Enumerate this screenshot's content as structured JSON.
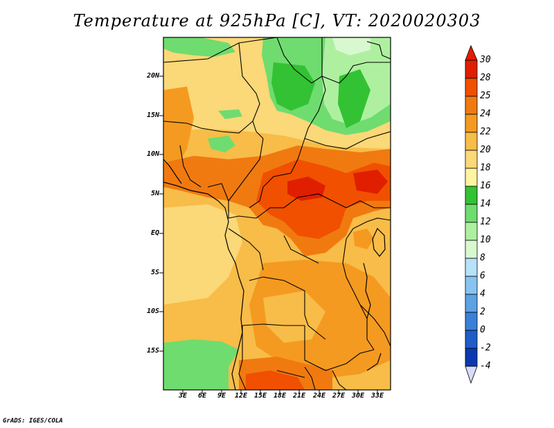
{
  "title": "Temperature at 925hPa [C], VT: 2020020303",
  "credit": "GrADS: IGES/COLA",
  "map": {
    "lat_labels": [
      "20N",
      "15N",
      "10N",
      "5N",
      "EQ",
      "5S",
      "10S",
      "15S"
    ],
    "lon_labels": [
      "3E",
      "6E",
      "9E",
      "12E",
      "15E",
      "18E",
      "21E",
      "24E",
      "27E",
      "30E",
      "33E"
    ]
  },
  "colorbar": {
    "levels": [
      "30",
      "28",
      "25",
      "24",
      "22",
      "20",
      "18",
      "16",
      "14",
      "12",
      "10",
      "8",
      "6",
      "4",
      "2",
      "0",
      "-2",
      "-4"
    ],
    "colors": {
      "above_28": "#e01e00",
      "25_28": "#f05000",
      "24_25": "#f07a10",
      "22_24": "#f59a20",
      "20_22": "#f8bc48",
      "18_20": "#fbd878",
      "16_18": "#fff4a0",
      "14_16": "#33c233",
      "12_14": "#6fdc6f",
      "10_12": "#aef0a0",
      "8_10": "#d8f8d0",
      "6_8": "#b6e2fa",
      "4_6": "#88c4f0",
      "2_4": "#5ca2e4",
      "0_2": "#3a80d8",
      "-2_0": "#1e5ec8",
      "-4_-2": "#0b38b0",
      "below_-4": "#050f6e"
    }
  }
}
